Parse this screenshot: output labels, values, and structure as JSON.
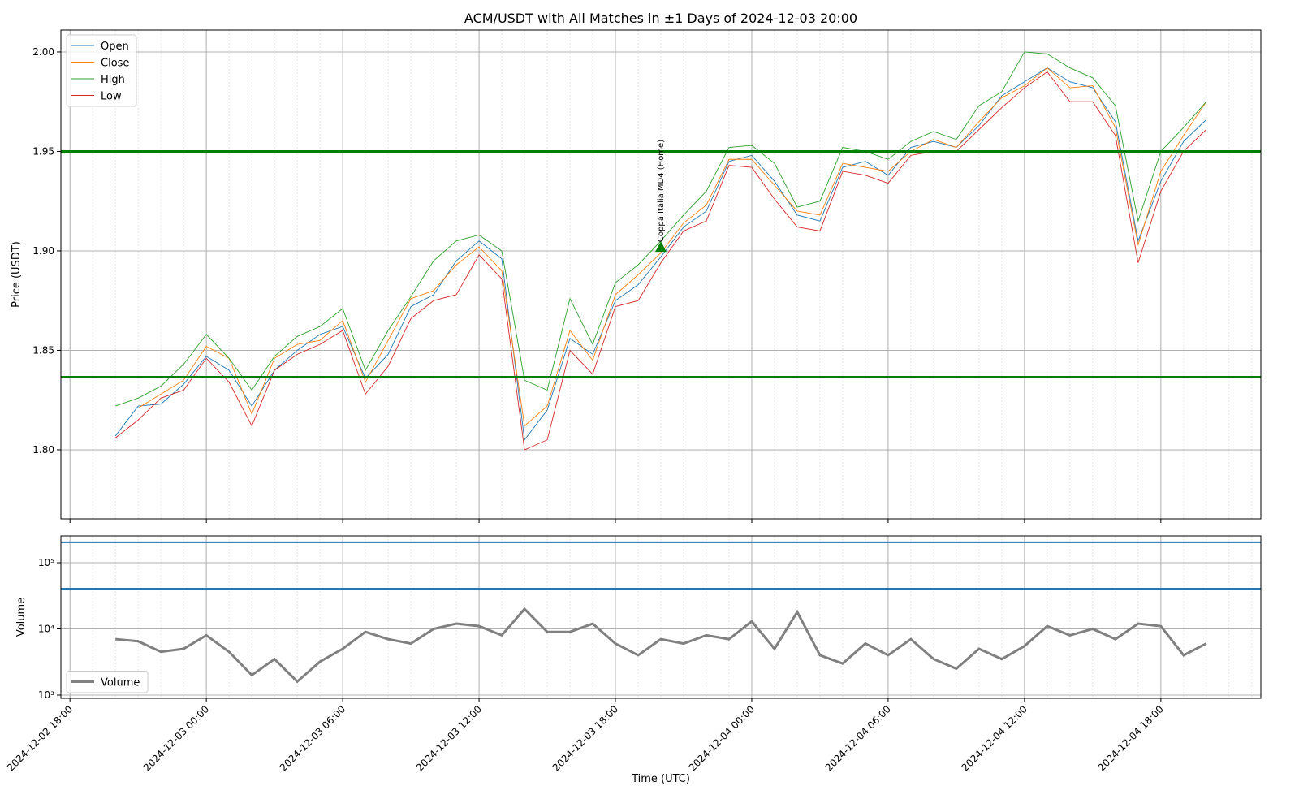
{
  "chart_data": [
    {
      "type": "line",
      "title": "ACM/USDT with All Matches in ±1 Days of 2024-12-03 20:00",
      "ylabel": "Price (USDT)",
      "x": [
        "2024-12-02 20:00",
        "2024-12-02 21:00",
        "2024-12-02 22:00",
        "2024-12-02 23:00",
        "2024-12-03 00:00",
        "2024-12-03 01:00",
        "2024-12-03 02:00",
        "2024-12-03 03:00",
        "2024-12-03 04:00",
        "2024-12-03 05:00",
        "2024-12-03 06:00",
        "2024-12-03 07:00",
        "2024-12-03 08:00",
        "2024-12-03 09:00",
        "2024-12-03 10:00",
        "2024-12-03 11:00",
        "2024-12-03 12:00",
        "2024-12-03 13:00",
        "2024-12-03 14:00",
        "2024-12-03 15:00",
        "2024-12-03 16:00",
        "2024-12-03 17:00",
        "2024-12-03 18:00",
        "2024-12-03 19:00",
        "2024-12-03 20:00",
        "2024-12-03 21:00",
        "2024-12-03 22:00",
        "2024-12-03 23:00",
        "2024-12-04 00:00",
        "2024-12-04 01:00",
        "2024-12-04 02:00",
        "2024-12-04 03:00",
        "2024-12-04 04:00",
        "2024-12-04 05:00",
        "2024-12-04 06:00",
        "2024-12-04 07:00",
        "2024-12-04 08:00",
        "2024-12-04 09:00",
        "2024-12-04 10:00",
        "2024-12-04 11:00",
        "2024-12-04 12:00",
        "2024-12-04 13:00",
        "2024-12-04 14:00",
        "2024-12-04 15:00",
        "2024-12-04 16:00",
        "2024-12-04 17:00",
        "2024-12-04 18:00",
        "2024-12-04 19:00",
        "2024-12-04 20:00"
      ],
      "xlim": [
        "2024-12-02 17:36",
        "2024-12-04 22:24"
      ],
      "ylim": [
        1.7653,
        2.011
      ],
      "yticks": [
        {
          "value": 1.8,
          "label": "1.80"
        },
        {
          "value": 1.85,
          "label": "1.85"
        },
        {
          "value": 1.9,
          "label": "1.90"
        },
        {
          "value": 1.95,
          "label": "1.95"
        },
        {
          "value": 2.0,
          "label": "2.00"
        }
      ],
      "grid": true,
      "legend": "upper left",
      "series": [
        {
          "name": "Open",
          "color": "#1f77b4",
          "values": [
            1.807,
            1.822,
            1.823,
            1.833,
            1.847,
            1.84,
            1.822,
            1.84,
            1.85,
            1.858,
            1.862,
            1.836,
            1.848,
            1.872,
            1.878,
            1.895,
            1.905,
            1.896,
            1.805,
            1.82,
            1.856,
            1.848,
            1.875,
            1.883,
            1.897,
            1.912,
            1.92,
            1.945,
            1.948,
            1.935,
            1.918,
            1.915,
            1.942,
            1.945,
            1.938,
            1.952,
            1.955,
            1.952,
            1.963,
            1.978,
            1.985,
            1.992,
            1.985,
            1.982,
            1.965,
            1.905,
            1.935,
            1.955,
            1.966
          ]
        },
        {
          "name": "Close",
          "color": "#ff7f0e",
          "values": [
            1.821,
            1.821,
            1.828,
            1.835,
            1.852,
            1.846,
            1.818,
            1.846,
            1.853,
            1.855,
            1.865,
            1.834,
            1.855,
            1.876,
            1.88,
            1.893,
            1.902,
            1.89,
            1.812,
            1.822,
            1.86,
            1.845,
            1.878,
            1.888,
            1.899,
            1.914,
            1.923,
            1.946,
            1.946,
            1.933,
            1.92,
            1.918,
            1.944,
            1.942,
            1.94,
            1.95,
            1.956,
            1.952,
            1.965,
            1.977,
            1.983,
            1.992,
            1.982,
            1.983,
            1.962,
            1.903,
            1.94,
            1.958,
            1.975
          ]
        },
        {
          "name": "High",
          "color": "#2ca02c",
          "values": [
            1.822,
            1.826,
            1.832,
            1.843,
            1.858,
            1.846,
            1.83,
            1.847,
            1.857,
            1.862,
            1.871,
            1.84,
            1.86,
            1.877,
            1.895,
            1.905,
            1.908,
            1.9,
            1.835,
            1.83,
            1.876,
            1.853,
            1.884,
            1.893,
            1.905,
            1.918,
            1.93,
            1.952,
            1.953,
            1.944,
            1.922,
            1.925,
            1.952,
            1.95,
            1.946,
            1.955,
            1.96,
            1.956,
            1.973,
            1.98,
            2.0,
            1.999,
            1.992,
            1.987,
            1.973,
            1.915,
            1.95,
            1.962,
            1.975
          ]
        },
        {
          "name": "Low",
          "color": "#d62728",
          "values": [
            1.806,
            1.815,
            1.826,
            1.83,
            1.846,
            1.834,
            1.812,
            1.84,
            1.848,
            1.853,
            1.86,
            1.828,
            1.842,
            1.866,
            1.875,
            1.878,
            1.898,
            1.886,
            1.8,
            1.805,
            1.85,
            1.838,
            1.872,
            1.875,
            1.894,
            1.91,
            1.915,
            1.943,
            1.942,
            1.926,
            1.912,
            1.91,
            1.94,
            1.938,
            1.934,
            1.948,
            1.95,
            1.95,
            1.961,
            1.972,
            1.982,
            1.99,
            1.975,
            1.975,
            1.958,
            1.894,
            1.93,
            1.95,
            1.961
          ]
        }
      ],
      "hlines": [
        {
          "value": 1.95,
          "color": "green"
        },
        {
          "value": 1.8365,
          "color": "green"
        }
      ],
      "annotation": {
        "text": "Coppa Italia MD4 (Home)",
        "x": "2024-12-03 20:00",
        "y": 1.902,
        "color": "green"
      }
    },
    {
      "type": "line",
      "ylabel": "Volume",
      "xlabel": "Time (UTC)",
      "log_scale": true,
      "x": [
        "2024-12-02 20:00",
        "2024-12-02 21:00",
        "2024-12-02 22:00",
        "2024-12-02 23:00",
        "2024-12-03 00:00",
        "2024-12-03 01:00",
        "2024-12-03 02:00",
        "2024-12-03 03:00",
        "2024-12-03 04:00",
        "2024-12-03 05:00",
        "2024-12-03 06:00",
        "2024-12-03 07:00",
        "2024-12-03 08:00",
        "2024-12-03 09:00",
        "2024-12-03 10:00",
        "2024-12-03 11:00",
        "2024-12-03 12:00",
        "2024-12-03 13:00",
        "2024-12-03 14:00",
        "2024-12-03 15:00",
        "2024-12-03 16:00",
        "2024-12-03 17:00",
        "2024-12-03 18:00",
        "2024-12-03 19:00",
        "2024-12-03 20:00",
        "2024-12-03 21:00",
        "2024-12-03 22:00",
        "2024-12-03 23:00",
        "2024-12-04 00:00",
        "2024-12-04 01:00",
        "2024-12-04 02:00",
        "2024-12-04 03:00",
        "2024-12-04 04:00",
        "2024-12-04 05:00",
        "2024-12-04 06:00",
        "2024-12-04 07:00",
        "2024-12-04 08:00",
        "2024-12-04 09:00",
        "2024-12-04 10:00",
        "2024-12-04 11:00",
        "2024-12-04 12:00",
        "2024-12-04 13:00",
        "2024-12-04 14:00",
        "2024-12-04 15:00",
        "2024-12-04 16:00",
        "2024-12-04 17:00",
        "2024-12-04 18:00",
        "2024-12-04 19:00",
        "2024-12-04 20:00"
      ],
      "xlim": [
        "2024-12-02 17:36",
        "2024-12-04 22:24"
      ],
      "xticks": [
        "2024-12-02 18:00",
        "2024-12-03 00:00",
        "2024-12-03 06:00",
        "2024-12-03 12:00",
        "2024-12-03 18:00",
        "2024-12-04 00:00",
        "2024-12-04 06:00",
        "2024-12-04 12:00",
        "2024-12-04 18:00"
      ],
      "ylim": [
        893,
        254000
      ],
      "yticks": [
        {
          "value": 1000,
          "label": "10³"
        },
        {
          "value": 10000,
          "label": "10⁴"
        },
        {
          "value": 100000,
          "label": "10⁵"
        }
      ],
      "grid": true,
      "legend": "lower left",
      "series": [
        {
          "name": "Volume",
          "color": "gray",
          "values": [
            7000,
            6500,
            4500,
            5000,
            8000,
            4500,
            2000,
            3500,
            1600,
            3200,
            5000,
            9000,
            7000,
            6000,
            10000,
            12000,
            11000,
            8000,
            20000,
            9000,
            9000,
            12000,
            6000,
            4000,
            7000,
            6000,
            8000,
            7000,
            13000,
            5000,
            18000,
            4000,
            3000,
            6000,
            4000,
            7000,
            3500,
            2500,
            5000,
            3500,
            5500,
            11000,
            8000,
            10000,
            7000,
            12000,
            11000,
            4000,
            6000
          ]
        }
      ],
      "hlines": [
        {
          "value": 203000,
          "color": "#1f77b4"
        },
        {
          "value": 40500,
          "color": "#1f77b4"
        }
      ]
    }
  ]
}
